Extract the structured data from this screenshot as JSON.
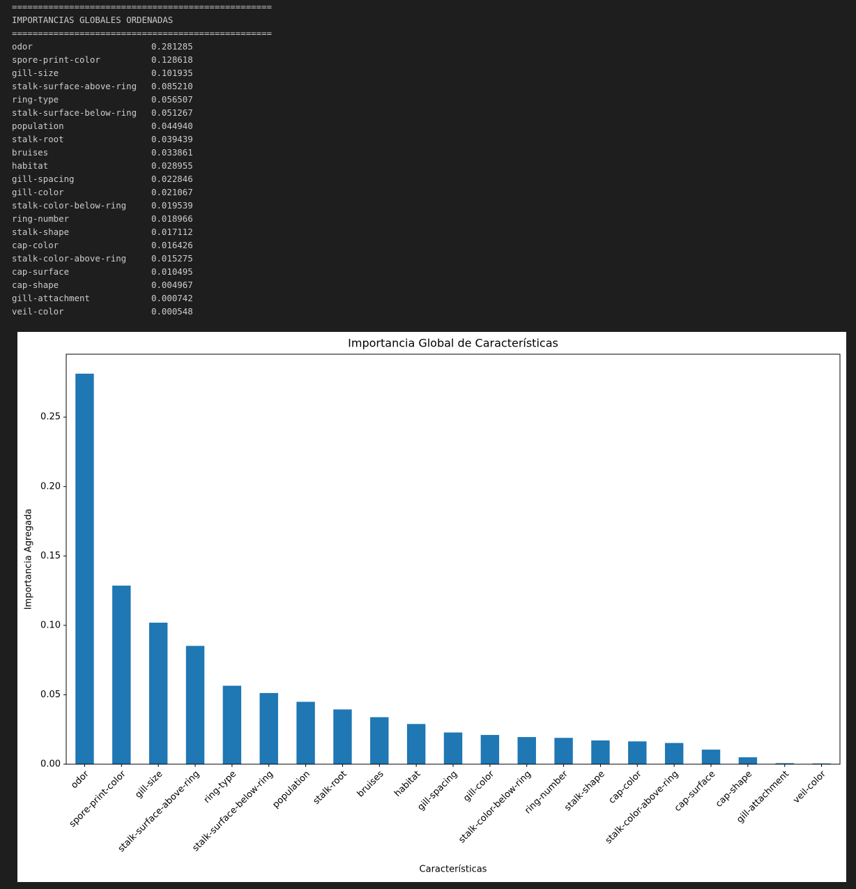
{
  "console": {
    "separator": "==================================================",
    "title": "IMPORTANCIAS GLOBALES ORDENADAS",
    "rows": [
      [
        "odor",
        "0.281285"
      ],
      [
        "spore-print-color",
        "0.128618"
      ],
      [
        "gill-size",
        "0.101935"
      ],
      [
        "stalk-surface-above-ring",
        "0.085210"
      ],
      [
        "ring-type",
        "0.056507"
      ],
      [
        "stalk-surface-below-ring",
        "0.051267"
      ],
      [
        "population",
        "0.044940"
      ],
      [
        "stalk-root",
        "0.039439"
      ],
      [
        "bruises",
        "0.033861"
      ],
      [
        "habitat",
        "0.028955"
      ],
      [
        "gill-spacing",
        "0.022846"
      ],
      [
        "gill-color",
        "0.021067"
      ],
      [
        "stalk-color-below-ring",
        "0.019539"
      ],
      [
        "ring-number",
        "0.018966"
      ],
      [
        "stalk-shape",
        "0.017112"
      ],
      [
        "cap-color",
        "0.016426"
      ],
      [
        "stalk-color-above-ring",
        "0.015275"
      ],
      [
        "cap-surface",
        "0.010495"
      ],
      [
        "cap-shape",
        "0.004967"
      ],
      [
        "gill-attachment",
        "0.000742"
      ],
      [
        "veil-color",
        "0.000548"
      ]
    ]
  },
  "chart_data": {
    "type": "bar",
    "title": "Importancia Global de Características",
    "x_label": "Características",
    "y_label": "Importancia Agregada",
    "categories": [
      "odor",
      "spore-print-color",
      "gill-size",
      "stalk-surface-above-ring",
      "ring-type",
      "stalk-surface-below-ring",
      "population",
      "stalk-root",
      "bruises",
      "habitat",
      "gill-spacing",
      "gill-color",
      "stalk-color-below-ring",
      "ring-number",
      "stalk-shape",
      "cap-color",
      "stalk-color-above-ring",
      "cap-surface",
      "cap-shape",
      "gill-attachment",
      "veil-color"
    ],
    "values": [
      0.281285,
      0.128618,
      0.101935,
      0.08521,
      0.056507,
      0.051267,
      0.04494,
      0.039439,
      0.033861,
      0.028955,
      0.022846,
      0.021067,
      0.019539,
      0.018966,
      0.017112,
      0.016426,
      0.015275,
      0.010495,
      0.004967,
      0.000742,
      0.000548
    ],
    "color": "#1f77b4",
    "ylim": [
      0,
      0.2953
    ],
    "yticks": [
      {
        "value": 0,
        "label": "0.00"
      },
      0.05,
      {
        "value": 0.1,
        "label": "0.10"
      },
      0.15,
      {
        "value": 0.2,
        "label": "0.20"
      },
      0.25
    ],
    "grid": false
  }
}
